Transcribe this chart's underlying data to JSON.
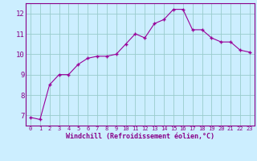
{
  "x": [
    0,
    1,
    2,
    3,
    4,
    5,
    6,
    7,
    8,
    9,
    10,
    11,
    12,
    13,
    14,
    15,
    16,
    17,
    18,
    19,
    20,
    21,
    22,
    23
  ],
  "y": [
    6.9,
    6.8,
    8.5,
    9.0,
    9.0,
    9.5,
    9.8,
    9.9,
    9.9,
    10.0,
    10.5,
    11.0,
    10.8,
    11.5,
    11.7,
    12.2,
    12.2,
    11.2,
    11.2,
    10.8,
    10.6,
    10.6,
    10.2,
    10.1
  ],
  "line_color": "#990099",
  "marker": "+",
  "marker_size": 3,
  "marker_lw": 1.0,
  "line_width": 0.8,
  "bg_color": "#cceeff",
  "grid_color": "#99cccc",
  "xlim": [
    -0.5,
    23.5
  ],
  "ylim": [
    6.5,
    12.5
  ],
  "yticks": [
    7,
    8,
    9,
    10,
    11,
    12
  ],
  "xticks": [
    0,
    1,
    2,
    3,
    4,
    5,
    6,
    7,
    8,
    9,
    10,
    11,
    12,
    13,
    14,
    15,
    16,
    17,
    18,
    19,
    20,
    21,
    22,
    23
  ],
  "xlabel": "Windchill (Refroidissement éolien,°C)",
  "xlabel_color": "#880088",
  "tick_color": "#880088",
  "spine_color": "#880088",
  "xtick_fontsize": 5.0,
  "ytick_fontsize": 6.5,
  "xlabel_fontsize": 6.0
}
